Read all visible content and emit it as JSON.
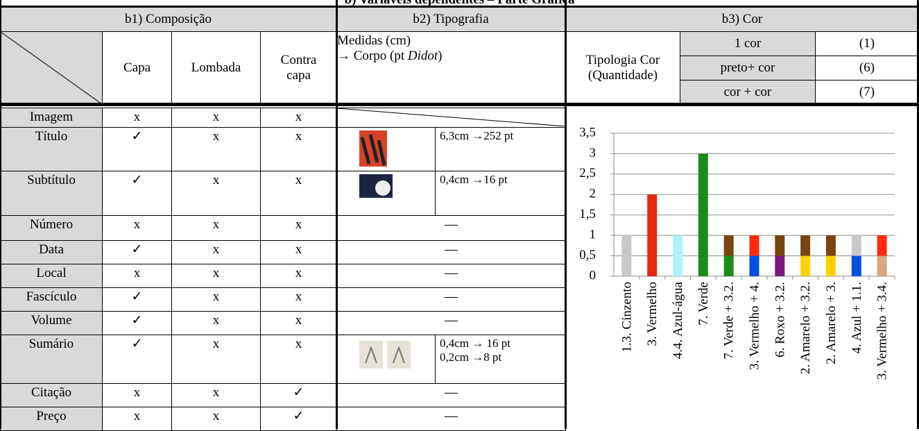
{
  "title": "b) Variáveis dependentes – Parte Gráfica",
  "sections": [
    "b1) Composição",
    "b2) Tipografia",
    "b3) Cor"
  ],
  "columns": [
    "Capa",
    "Lombada",
    "Contra capa"
  ],
  "measures_header": {
    "line1": "Medidas (cm)",
    "line2_prefix": "→ Corpo (pt ",
    "line2_italic": "Didot",
    "line2_suffix": ")"
  },
  "color_typology": {
    "label": "Tipologia Cor (Quantidade)",
    "rows": [
      [
        "1 cor",
        "(1)"
      ],
      [
        "preto+ cor",
        "(6)"
      ],
      [
        "cor + cor",
        "(7)"
      ]
    ]
  },
  "rows": [
    {
      "label": "Imagem",
      "cells": [
        "x",
        "x",
        "x"
      ]
    },
    {
      "label": "Título",
      "cells": [
        "✓",
        "x",
        "x"
      ],
      "measure": [
        "6,3cm →252 pt"
      ]
    },
    {
      "label": "Subtítulo",
      "cells": [
        "✓",
        "x",
        "x"
      ],
      "measure": [
        "0,4cm →16 pt"
      ]
    },
    {
      "label": "Número",
      "cells": [
        "x",
        "x",
        "x"
      ],
      "dash": "—"
    },
    {
      "label": "Data",
      "cells": [
        "✓",
        "x",
        "x"
      ],
      "dash": "—"
    },
    {
      "label": "Local",
      "cells": [
        "x",
        "x",
        "x"
      ],
      "dash": "—"
    },
    {
      "label": "Fascículo",
      "cells": [
        "✓",
        "x",
        "x"
      ],
      "dash": "—"
    },
    {
      "label": "Volume",
      "cells": [
        "✓",
        "x",
        "x"
      ],
      "dash": "—"
    },
    {
      "label": "Sumário",
      "cells": [
        "✓",
        "x",
        "x"
      ],
      "measure": [
        "0,4cm → 16 pt",
        "0,2cm →8 pt"
      ]
    },
    {
      "label": "Citação",
      "cells": [
        "x",
        "x",
        "✓"
      ],
      "dash": "—"
    },
    {
      "label": "Preço",
      "cells": [
        "x",
        "x",
        "✓"
      ],
      "dash": "—"
    }
  ],
  "chart_data": {
    "type": "stacked_bar",
    "categories": [
      "1.3. Cinzento",
      "3. Vermelho",
      "4.4. Azul-água",
      "7. Verde",
      "7. Verde + 3.2.",
      "3. Vermelho + 4.",
      "6. Roxo + 3.2.",
      "2. Amarelo + 3.2.",
      "2. Amarelo + 3.",
      "4. Azul + 1.1.",
      "3. Vermelho + 3.4."
    ],
    "segments": [
      [
        {
          "value": 1,
          "color": "#c8c8c8"
        }
      ],
      [
        {
          "value": 2,
          "color": "#e32a10"
        }
      ],
      [
        {
          "value": 1,
          "color": "#aef2f8"
        }
      ],
      [
        {
          "value": 3,
          "color": "#1a8c1a"
        }
      ],
      [
        {
          "value": 0.5,
          "color": "#1a8c1a"
        },
        {
          "value": 0.5,
          "color": "#7a4410"
        }
      ],
      [
        {
          "value": 0.5,
          "color": "#0050e0"
        },
        {
          "value": 0.5,
          "color": "#ff2a10"
        }
      ],
      [
        {
          "value": 0.5,
          "color": "#7a1a80"
        },
        {
          "value": 0.5,
          "color": "#7a4410"
        }
      ],
      [
        {
          "value": 0.5,
          "color": "#ffd000"
        },
        {
          "value": 0.5,
          "color": "#7a4410"
        }
      ],
      [
        {
          "value": 0.5,
          "color": "#ffd000"
        },
        {
          "value": 0.5,
          "color": "#7a4410"
        }
      ],
      [
        {
          "value": 0.5,
          "color": "#0050e0"
        },
        {
          "value": 0.5,
          "color": "#c8c8c8"
        }
      ],
      [
        {
          "value": 0.5,
          "color": "#d8a880"
        },
        {
          "value": 0.5,
          "color": "#ff2a10"
        }
      ]
    ],
    "ylim": [
      0,
      3.5
    ],
    "yticks": [
      0,
      {
        "value": 0.5,
        "label": "0,5"
      },
      1,
      {
        "value": 1.5,
        "label": "1,5"
      },
      2,
      {
        "value": 2.5,
        "label": "2,5"
      },
      3,
      {
        "value": 3.5,
        "label": "3,5"
      }
    ],
    "grid": true
  }
}
